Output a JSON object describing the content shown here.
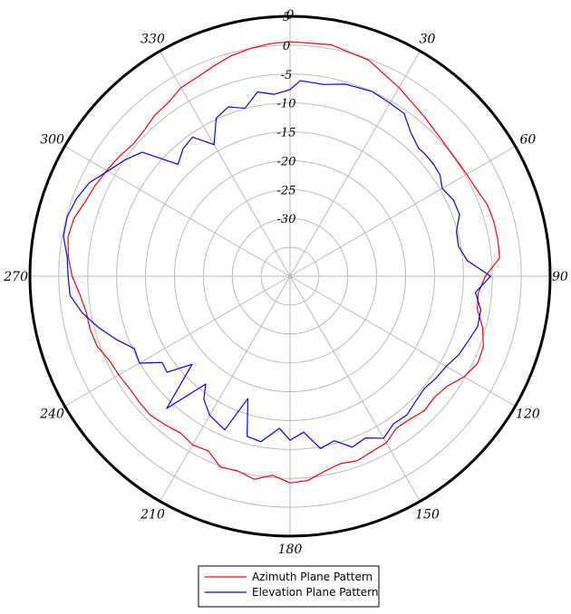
{
  "chart_data": {
    "type": "polar-line",
    "title": "",
    "angle_direction": "clockwise",
    "zero_angle": "top",
    "angle_ticks": [
      0,
      30,
      60,
      90,
      120,
      150,
      180,
      210,
      240,
      270,
      300,
      330
    ],
    "angle_tick_labels": [
      "0",
      "30",
      "60",
      "90",
      "120",
      "150",
      "180",
      "210",
      "240",
      "270",
      "300",
      "330"
    ],
    "r_ticks": [
      5,
      0,
      -5,
      -10,
      -15,
      -20,
      -25,
      -30
    ],
    "r_tick_labels": [
      "5",
      "0",
      "-5",
      "-10",
      "-15",
      "-20",
      "-25",
      "-30"
    ],
    "r_range": [
      -40,
      5
    ],
    "grid": true,
    "legend_position": "bottom-center",
    "series": [
      {
        "name": "Azimuth Plane Pattern",
        "color": "#ff0000",
        "points": [
          [
            0,
            0.6
          ],
          [
            10,
            0.7
          ],
          [
            20,
            -0.2
          ],
          [
            30,
            -2.3
          ],
          [
            40,
            -3.9
          ],
          [
            50,
            -4.8
          ],
          [
            60,
            -4.7
          ],
          [
            65,
            -4.4
          ],
          [
            70,
            -3.7
          ],
          [
            75,
            -3.5
          ],
          [
            80,
            -3.5
          ],
          [
            85,
            -3.6
          ],
          [
            90,
            -6.2
          ],
          [
            95,
            -7.3
          ],
          [
            100,
            -7.1
          ],
          [
            105,
            -5.5
          ],
          [
            110,
            -4.4
          ],
          [
            115,
            -4.2
          ],
          [
            120,
            -5.2
          ],
          [
            125,
            -6.8
          ],
          [
            130,
            -7.4
          ],
          [
            135,
            -7.1
          ],
          [
            140,
            -7.7
          ],
          [
            145,
            -7.9
          ],
          [
            150,
            -6.7
          ],
          [
            155,
            -6.5
          ],
          [
            160,
            -6.0
          ],
          [
            165,
            -6.4
          ],
          [
            170,
            -5.7
          ],
          [
            175,
            -4.5
          ],
          [
            180,
            -4.2
          ],
          [
            185,
            -5.4
          ],
          [
            190,
            -4.3
          ],
          [
            195,
            -5.1
          ],
          [
            200,
            -4.8
          ],
          [
            205,
            -6.6
          ],
          [
            210,
            -6.3
          ],
          [
            215,
            -6.9
          ],
          [
            220,
            -6.4
          ],
          [
            225,
            -5.9
          ],
          [
            230,
            -6.0
          ],
          [
            235,
            -6.1
          ],
          [
            240,
            -5.8
          ],
          [
            245,
            -5.5
          ],
          [
            250,
            -4.5
          ],
          [
            255,
            -4.2
          ],
          [
            260,
            -4.2
          ],
          [
            265,
            -3.5
          ],
          [
            270,
            -2.3
          ],
          [
            275,
            -1.5
          ],
          [
            280,
            -1.0
          ],
          [
            285,
            -1.3
          ],
          [
            290,
            -2.3
          ],
          [
            295,
            -2.8
          ],
          [
            300,
            -3.4
          ],
          [
            305,
            -3.9
          ],
          [
            310,
            -4.5
          ],
          [
            315,
            -4.3
          ],
          [
            320,
            -3.6
          ],
          [
            325,
            -3.3
          ],
          [
            330,
            -2.3
          ],
          [
            335,
            -2.0
          ],
          [
            340,
            -1.3
          ],
          [
            345,
            -0.5
          ],
          [
            350,
            0.0
          ],
          [
            355,
            0.4
          ]
        ]
      },
      {
        "name": "Elevation Plane Pattern",
        "color": "#0000ff",
        "points": [
          [
            0,
            -7.7
          ],
          [
            3,
            -6.1
          ],
          [
            10,
            -6.3
          ],
          [
            16,
            -5.4
          ],
          [
            24,
            -5.0
          ],
          [
            30,
            -5.4
          ],
          [
            35,
            -5.6
          ],
          [
            40,
            -7.5
          ],
          [
            45,
            -8.6
          ],
          [
            48,
            -8.5
          ],
          [
            52,
            -8.5
          ],
          [
            56,
            -8.7
          ],
          [
            60,
            -9.6
          ],
          [
            65,
            -8.8
          ],
          [
            70,
            -8.8
          ],
          [
            75,
            -10.2
          ],
          [
            80,
            -10.4
          ],
          [
            85,
            -9.2
          ],
          [
            90,
            -5.3
          ],
          [
            95,
            -7.8
          ],
          [
            100,
            -6.5
          ],
          [
            105,
            -6.4
          ],
          [
            110,
            -7.2
          ],
          [
            115,
            -7.8
          ],
          [
            120,
            -8.8
          ],
          [
            125,
            -9.2
          ],
          [
            130,
            -9.7
          ],
          [
            135,
            -9.3
          ],
          [
            140,
            -8.6
          ],
          [
            145,
            -8.8
          ],
          [
            150,
            -7.6
          ],
          [
            155,
            -9.1
          ],
          [
            160,
            -8.5
          ],
          [
            165,
            -10.5
          ],
          [
            170,
            -9.7
          ],
          [
            175,
            -12.9
          ],
          [
            180,
            -11.6
          ],
          [
            184,
            -13.6
          ],
          [
            190,
            -10.9
          ],
          [
            195,
            -11.3
          ],
          [
            199,
            -17.6
          ],
          [
            203,
            -11.1
          ],
          [
            210,
            -12.2
          ],
          [
            215,
            -14.0
          ],
          [
            218,
            -16.3
          ],
          [
            223,
            -8.7
          ],
          [
            228,
            -17.2
          ],
          [
            232,
            -13.0
          ],
          [
            236,
            -13.3
          ],
          [
            240,
            -9.9
          ],
          [
            245,
            -10.3
          ],
          [
            250,
            -8.0
          ],
          [
            255,
            -5.7
          ],
          [
            260,
            -3.5
          ],
          [
            265,
            -1.8
          ],
          [
            270,
            -1.6
          ],
          [
            275,
            -1.3
          ],
          [
            280,
            -0.2
          ],
          [
            285,
            -0.1
          ],
          [
            290,
            -0.7
          ],
          [
            295,
            -1.7
          ],
          [
            300,
            -3.6
          ],
          [
            305,
            -5.0
          ],
          [
            310,
            -6.6
          ],
          [
            315,
            -12.6
          ],
          [
            320,
            -11.2
          ],
          [
            325,
            -10.6
          ],
          [
            330,
            -13.7
          ],
          [
            335,
            -9.8
          ],
          [
            340,
            -8.8
          ],
          [
            345,
            -9.9
          ],
          [
            350,
            -7.6
          ],
          [
            355,
            -8.4
          ]
        ]
      }
    ]
  }
}
